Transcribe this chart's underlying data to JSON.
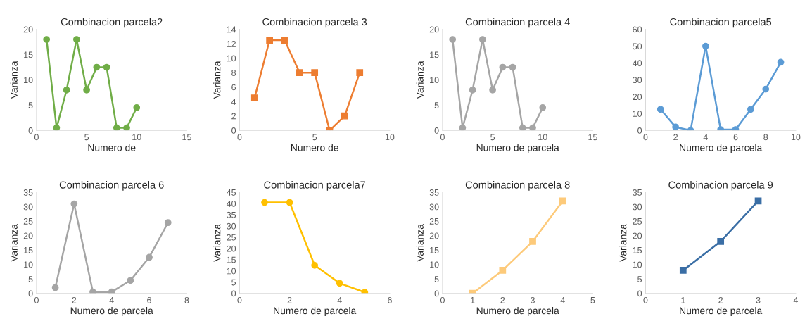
{
  "chart_data": [
    {
      "type": "line",
      "title": "Combinacion parcela2",
      "xlabel": "Numero de",
      "ylabel": "Varianza",
      "marker": "circle",
      "grid": false,
      "legend": false,
      "xlim": [
        0,
        15
      ],
      "xticks": [
        0,
        5,
        10,
        15
      ],
      "ylim": [
        0,
        20
      ],
      "yticks": [
        0,
        5,
        10,
        15,
        20
      ],
      "series": [
        {
          "color": "#70ad47",
          "x": [
            1,
            2,
            3,
            4,
            5,
            6,
            7,
            8,
            9,
            10
          ],
          "values": [
            18,
            0.5,
            8,
            18,
            8,
            12.5,
            12.5,
            0.5,
            0.5,
            4.5
          ]
        }
      ]
    },
    {
      "type": "line",
      "title": "Combinacion parcela 3",
      "xlabel": "Numero de",
      "ylabel": "Varianza",
      "marker": "square",
      "grid": false,
      "legend": false,
      "xlim": [
        0,
        10
      ],
      "xticks": [
        0,
        5,
        10
      ],
      "ylim": [
        0,
        14
      ],
      "yticks": [
        0,
        2,
        4,
        6,
        8,
        10,
        12,
        14
      ],
      "series": [
        {
          "color": "#ed7d31",
          "x": [
            1,
            2,
            3,
            4,
            5,
            6,
            7,
            8
          ],
          "values": [
            4.5,
            12.5,
            12.5,
            8,
            8,
            0,
            2,
            8
          ]
        }
      ]
    },
    {
      "type": "line",
      "title": "Combinacion parcela 4",
      "xlabel": "Numero de parcela",
      "ylabel": "Varianza",
      "marker": "circle",
      "grid": false,
      "legend": false,
      "xlim": [
        0,
        15
      ],
      "xticks": [
        0,
        5,
        10,
        15
      ],
      "ylim": [
        0,
        20
      ],
      "yticks": [
        0,
        5,
        10,
        15,
        20
      ],
      "series": [
        {
          "color": "#a5a5a5",
          "x": [
            1,
            2,
            3,
            4,
            5,
            6,
            7,
            8,
            9,
            10
          ],
          "values": [
            18,
            0.5,
            8,
            18,
            8,
            12.5,
            12.5,
            0.5,
            0.5,
            4.5
          ]
        }
      ]
    },
    {
      "type": "line",
      "title": "Combinacion parcela5",
      "xlabel": "Numero de parcela",
      "marker": "circle",
      "grid": false,
      "legend": false,
      "xlim": [
        0,
        10
      ],
      "xticks": [
        0,
        2,
        4,
        6,
        8,
        10
      ],
      "ylim": [
        0,
        60
      ],
      "yticks": [
        0,
        10,
        20,
        30,
        40,
        50,
        60
      ],
      "series": [
        {
          "color": "#5b9bd5",
          "x": [
            1,
            2,
            3,
            4,
            5,
            6,
            7,
            8,
            9
          ],
          "values": [
            12.5,
            2,
            0,
            50,
            0.5,
            0.5,
            12.5,
            24.5,
            40.5
          ]
        }
      ]
    },
    {
      "type": "line",
      "title": "Combinacion parcela 6",
      "xlabel": "Numero de parcela",
      "ylabel": "Varianza",
      "marker": "circle",
      "grid": false,
      "legend": false,
      "xlim": [
        0,
        8
      ],
      "xticks": [
        0,
        2,
        4,
        6,
        8
      ],
      "ylim": [
        0,
        35
      ],
      "yticks": [
        0,
        5,
        10,
        15,
        20,
        25,
        30,
        35
      ],
      "series": [
        {
          "color": "#a5a5a5",
          "x": [
            1,
            2,
            3,
            4,
            5,
            6,
            7
          ],
          "values": [
            2,
            31,
            0.5,
            0.5,
            4.5,
            12.5,
            24.5
          ]
        }
      ]
    },
    {
      "type": "line",
      "title": "Combinacion parcela7",
      "xlabel": "Numero de parcela",
      "ylabel": "Varianza",
      "marker": "circle",
      "grid": false,
      "legend": false,
      "xlim": [
        0,
        6
      ],
      "xticks": [
        0,
        2,
        4,
        6
      ],
      "ylim": [
        0,
        45
      ],
      "yticks": [
        0,
        5,
        10,
        15,
        20,
        25,
        30,
        35,
        40,
        45
      ],
      "series": [
        {
          "color": "#ffc000",
          "x": [
            1,
            2,
            3,
            4,
            5
          ],
          "values": [
            40.5,
            40.5,
            12.5,
            4.5,
            0.5
          ]
        }
      ]
    },
    {
      "type": "line",
      "title": "Combinacion parcela 8",
      "xlabel": "Numero de parcela",
      "ylabel": "Varianza",
      "marker": "square",
      "grid": false,
      "legend": false,
      "xlim": [
        0,
        5
      ],
      "xticks": [
        0,
        1,
        2,
        3,
        4,
        5
      ],
      "ylim": [
        0,
        35
      ],
      "yticks": [
        0,
        5,
        10,
        15,
        20,
        25,
        30,
        35
      ],
      "series": [
        {
          "color": "#fdca7a",
          "x": [
            1,
            2,
            3,
            4
          ],
          "values": [
            0,
            8,
            18,
            32
          ]
        }
      ]
    },
    {
      "type": "line",
      "title": "Combinacion parcela 9",
      "xlabel": "Numero de parcela",
      "ylabel": "Varianza",
      "marker": "square",
      "grid": false,
      "legend": false,
      "xlim": [
        0,
        4
      ],
      "xticks": [
        0,
        1,
        2,
        3,
        4
      ],
      "ylim": [
        0,
        35
      ],
      "yticks": [
        0,
        5,
        10,
        15,
        20,
        25,
        30,
        35
      ],
      "series": [
        {
          "color": "#3a6ea5",
          "x": [
            1,
            2,
            3
          ],
          "values": [
            8,
            18,
            32
          ]
        }
      ]
    }
  ]
}
